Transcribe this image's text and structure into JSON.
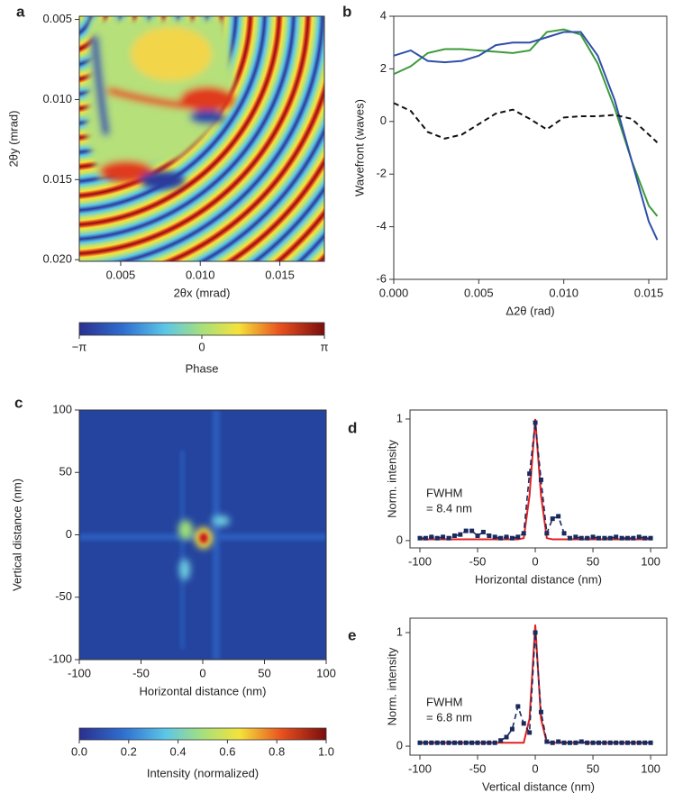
{
  "chart_data": [
    {
      "type": "heatmap",
      "panel": "a",
      "xlabel": "2θx (mrad)",
      "ylabel": "2θy (mrad)",
      "y_inverted": true,
      "xlim": [
        0.0024,
        0.0178
      ],
      "ylim": [
        0.0048,
        0.0201
      ],
      "xticks": [
        0.005,
        {
          "value": 0.01,
          "label": "0.010"
        },
        0.015
      ],
      "yticks": [
        0.005,
        {
          "value": 0.01,
          "label": "0.010"
        },
        0.015,
        {
          "value": 0.02,
          "label": "0.020"
        }
      ],
      "colorbar": {
        "label": "Phase",
        "lim": [
          -3.1416,
          3.1416
        ],
        "ticks": [
          {
            "value": -3.1416,
            "label": "−π"
          },
          0,
          {
            "value": 3.1416,
            "label": "π"
          }
        ]
      }
    },
    {
      "type": "line",
      "panel": "b",
      "xlabel": "Δ2θ (rad)",
      "ylabel": "Wavefront (waves)",
      "xlim": [
        0,
        0.01606
      ],
      "ylim": [
        -6,
        4
      ],
      "xticks": [
        {
          "value": 0,
          "label": "0.000"
        },
        0.005,
        {
          "value": 0.01,
          "label": "0.010"
        },
        0.015
      ],
      "yticks": [
        -6,
        -4,
        -2,
        0,
        2,
        4
      ],
      "x": [
        0,
        0.001,
        0.002,
        0.003,
        0.004,
        0.005,
        0.006,
        0.007,
        0.008,
        0.009,
        0.01,
        0.011,
        0.012,
        0.013,
        0.014,
        0.015,
        0.0155
      ],
      "series": [
        {
          "color": "#3c9a3c",
          "dash": false,
          "values": [
            1.8,
            2.1,
            2.6,
            2.75,
            2.75,
            2.7,
            2.65,
            2.6,
            2.7,
            3.4,
            3.5,
            3.3,
            2.2,
            0.5,
            -1.5,
            -3.2,
            -3.6
          ]
        },
        {
          "color": "#2f4fa8",
          "dash": false,
          "values": [
            2.5,
            2.7,
            2.3,
            2.25,
            2.3,
            2.5,
            2.9,
            3.0,
            3.0,
            3.2,
            3.4,
            3.4,
            2.5,
            0.8,
            -1.5,
            -3.8,
            -4.5
          ]
        },
        {
          "color": "#111111",
          "dash": true,
          "values": [
            0.7,
            0.4,
            -0.4,
            -0.65,
            -0.5,
            -0.1,
            0.3,
            0.45,
            0.1,
            -0.3,
            0.15,
            0.2,
            0.2,
            0.25,
            0.1,
            -0.5,
            -0.8
          ]
        }
      ]
    },
    {
      "type": "heatmap",
      "panel": "c",
      "xlabel": "Horizontal distance (nm)",
      "ylabel": "Vertical distance (nm)",
      "y_inverted": false,
      "xlim": [
        -100,
        100
      ],
      "ylim": [
        -100,
        100
      ],
      "xticks": [
        -100,
        -50,
        0,
        50,
        100
      ],
      "yticks": [
        -100,
        -50,
        0,
        50,
        100
      ],
      "colorbar": {
        "label": "Intensity (normalized)",
        "lim": [
          0,
          1
        ],
        "ticks": [
          {
            "value": 0,
            "label": "0.0"
          },
          0.2,
          0.4,
          0.6,
          0.8,
          {
            "value": 1,
            "label": "1.0"
          }
        ]
      }
    },
    {
      "type": "line",
      "panel": "d",
      "xlabel": "Horizontal distance (nm)",
      "ylabel": "Norm. intensity",
      "annotation": [
        "FWHM",
        "= 8.4 nm"
      ],
      "xlim": [
        -108.6,
        114
      ],
      "ylim": [
        -0.06,
        1.074
      ],
      "xticks": [
        -100,
        -50,
        0,
        50,
        100
      ],
      "yticks": [
        0,
        1
      ],
      "x": [
        -100,
        -95,
        -90,
        -85,
        -80,
        -75,
        -70,
        -65,
        -60,
        -55,
        -50,
        -45,
        -40,
        -35,
        -30,
        -25,
        -20,
        -15,
        -10,
        -5,
        0,
        5,
        10,
        15,
        20,
        25,
        30,
        35,
        40,
        45,
        50,
        55,
        60,
        65,
        70,
        75,
        80,
        85,
        90,
        95,
        100
      ],
      "series": [
        {
          "color": "#e02020",
          "dash": false,
          "values": [
            0.01,
            0.01,
            0.01,
            0.01,
            0.01,
            0.01,
            0.01,
            0.01,
            0.01,
            0.01,
            0.01,
            0.01,
            0.01,
            0.01,
            0.01,
            0.01,
            0.01,
            0.01,
            0.02,
            0.37,
            1.0,
            0.37,
            0.02,
            0.01,
            0.01,
            0.01,
            0.01,
            0.01,
            0.01,
            0.01,
            0.01,
            0.01,
            0.01,
            0.01,
            0.01,
            0.01,
            0.01,
            0.01,
            0.01,
            0.01,
            0.01
          ]
        },
        {
          "color": "#1b2a5e",
          "dash": true,
          "markers": true,
          "values": [
            0.02,
            0.02,
            0.03,
            0.02,
            0.03,
            0.02,
            0.04,
            0.05,
            0.08,
            0.08,
            0.04,
            0.07,
            0.04,
            0.03,
            0.02,
            0.03,
            0.02,
            0.03,
            0.06,
            0.55,
            0.97,
            0.5,
            0.06,
            0.18,
            0.2,
            0.06,
            0.02,
            0.03,
            0.02,
            0.02,
            0.03,
            0.02,
            0.02,
            0.02,
            0.03,
            0.02,
            0.02,
            0.02,
            0.03,
            0.02,
            0.02
          ]
        }
      ]
    },
    {
      "type": "line",
      "panel": "e",
      "xlabel": "Vertical distance (nm)",
      "ylabel": "Norm. intensity",
      "annotation": [
        "FWHM",
        "= 6.8 nm"
      ],
      "xlim": [
        -108.6,
        114
      ],
      "ylim": [
        -0.079,
        1.127
      ],
      "xticks": [
        -100,
        -50,
        0,
        50,
        100
      ],
      "yticks": [
        0,
        1
      ],
      "x": [
        -100,
        -95,
        -90,
        -85,
        -80,
        -75,
        -70,
        -65,
        -60,
        -55,
        -50,
        -45,
        -40,
        -35,
        -30,
        -25,
        -20,
        -15,
        -10,
        -5,
        0,
        5,
        10,
        15,
        20,
        25,
        30,
        35,
        40,
        45,
        50,
        55,
        60,
        65,
        70,
        75,
        80,
        85,
        90,
        95,
        100
      ],
      "series": [
        {
          "color": "#e02020",
          "dash": false,
          "values": [
            0.03,
            0.03,
            0.03,
            0.03,
            0.03,
            0.03,
            0.03,
            0.03,
            0.03,
            0.03,
            0.03,
            0.03,
            0.03,
            0.03,
            0.03,
            0.03,
            0.03,
            0.03,
            0.03,
            0.24,
            1.07,
            0.24,
            0.03,
            0.03,
            0.03,
            0.03,
            0.03,
            0.03,
            0.03,
            0.03,
            0.03,
            0.03,
            0.03,
            0.03,
            0.03,
            0.03,
            0.03,
            0.03,
            0.03,
            0.03,
            0.03
          ]
        },
        {
          "color": "#1b2a5e",
          "dash": true,
          "markers": true,
          "values": [
            0.03,
            0.03,
            0.03,
            0.03,
            0.03,
            0.03,
            0.03,
            0.03,
            0.03,
            0.03,
            0.03,
            0.03,
            0.03,
            0.03,
            0.05,
            0.08,
            0.15,
            0.35,
            0.2,
            0.12,
            1.0,
            0.3,
            0.04,
            0.03,
            0.04,
            0.03,
            0.03,
            0.03,
            0.04,
            0.03,
            0.03,
            0.03,
            0.03,
            0.03,
            0.03,
            0.03,
            0.03,
            0.03,
            0.03,
            0.03,
            0.03
          ]
        }
      ]
    }
  ]
}
